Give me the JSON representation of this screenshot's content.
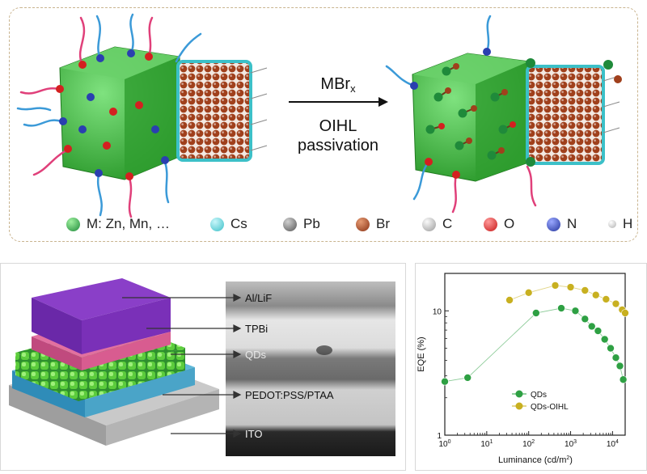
{
  "reaction": {
    "reagent": "MBr",
    "reagent_subscript": "x",
    "process_line1": "OIHL",
    "process_line2": "passivation"
  },
  "legend": [
    {
      "label": "M: Zn, Mn, …",
      "color": "#1f8a3a",
      "icon": "green-sphere"
    },
    {
      "label": "Cs",
      "color": "#3cc0c8",
      "icon": "cyan-sphere"
    },
    {
      "label": "Pb",
      "color": "#6a6a6a",
      "icon": "gray-sphere"
    },
    {
      "label": "Br",
      "color": "#a0401c",
      "icon": "brown-sphere"
    },
    {
      "label": "C",
      "color": "#bdbdbd",
      "icon": "light-gray-sphere"
    },
    {
      "label": "O",
      "color": "#d42020",
      "icon": "red-sphere"
    },
    {
      "label": "N",
      "color": "#2a3fb0",
      "icon": "blue-sphere"
    },
    {
      "label": "H",
      "color": "#eeeeee",
      "icon": "white-sphere"
    }
  ],
  "device_layers": [
    {
      "label": "Al/LiF"
    },
    {
      "label": "TPBi"
    },
    {
      "label": "QDs"
    },
    {
      "label": "PEDOT:PSS/PTAA"
    },
    {
      "label": "ITO"
    }
  ],
  "chart_data": {
    "type": "scatter",
    "xlabel": "Luminance (cd/m",
    "xlabel_sup": "2",
    "xlabel_end": ")",
    "ylabel": "EQE (%)",
    "x_scale": "log",
    "y_scale": "log",
    "xlim": [
      1,
      20000
    ],
    "ylim": [
      1,
      20
    ],
    "x_tick_labels": [
      {
        "base": "10",
        "exp": "0",
        "value": 1
      },
      {
        "base": "10",
        "exp": "1",
        "value": 10
      },
      {
        "base": "10",
        "exp": "2",
        "value": 100
      },
      {
        "base": "10",
        "exp": "3",
        "value": 1000
      },
      {
        "base": "10",
        "exp": "4",
        "value": 10000
      }
    ],
    "y_tick_labels": [
      {
        "label": "1",
        "value": 1
      },
      {
        "label": "10",
        "value": 10
      }
    ],
    "legend_position": "lower-middle",
    "series": [
      {
        "name": "QDs",
        "color": "#2ea043",
        "points": [
          [
            1,
            2.7
          ],
          [
            3.5,
            2.9
          ],
          [
            150,
            9.6
          ],
          [
            600,
            10.5
          ],
          [
            1300,
            10.0
          ],
          [
            2200,
            8.6
          ],
          [
            3200,
            7.5
          ],
          [
            4500,
            6.9
          ],
          [
            6500,
            5.9
          ],
          [
            9000,
            5.0
          ],
          [
            12000,
            4.2
          ],
          [
            15000,
            3.6
          ],
          [
            18000,
            2.8
          ]
        ]
      },
      {
        "name": "QDs-OIHL",
        "color": "#c8b020",
        "points": [
          [
            35,
            12.2
          ],
          [
            100,
            14.0
          ],
          [
            430,
            16.0
          ],
          [
            1000,
            15.5
          ],
          [
            2200,
            14.6
          ],
          [
            4000,
            13.4
          ],
          [
            7000,
            12.4
          ],
          [
            12000,
            11.4
          ],
          [
            17000,
            10.2
          ],
          [
            20000,
            9.6
          ]
        ]
      }
    ]
  }
}
